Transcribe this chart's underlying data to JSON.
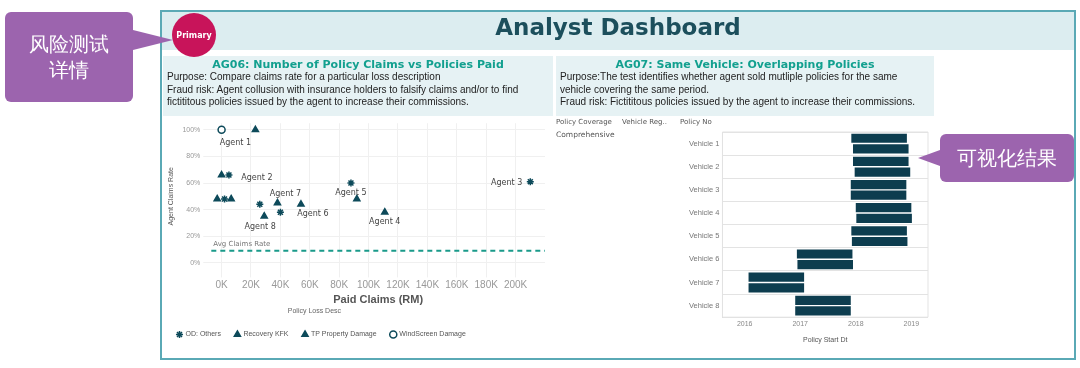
{
  "chart_data": [
    {
      "type": "scatter",
      "title": "AG06: Number of Policy Claims vs Policies Paid",
      "subtitle": "Purpose: Compare claims rate for a particular loss description\nFraud risk: Agent collusion with insurance holders to falsify claims and/or to find fictititous policies issued by the agent to increase their commissions.",
      "xlabel": "Paid Claims (RM)",
      "ylabel": "Agent Claims Rate",
      "legend_title": "Policy Loss Desc",
      "legend": "bottom",
      "grid": true,
      "xlim": [
        -7000,
        220000
      ],
      "xticks": [
        {
          "value": 0,
          "label": "0K"
        },
        {
          "value": 20000,
          "label": "20K"
        },
        {
          "value": 40000,
          "label": "40K"
        },
        {
          "value": 60000,
          "label": "60K"
        },
        {
          "value": 80000,
          "label": "80K"
        },
        {
          "value": 100000,
          "label": "100K"
        },
        {
          "value": 120000,
          "label": "120K"
        },
        {
          "value": 140000,
          "label": "140K"
        },
        {
          "value": 160000,
          "label": "160K"
        },
        {
          "value": 180000,
          "label": "180K"
        },
        {
          "value": 200000,
          "label": "200K"
        }
      ],
      "ylim": [
        -5,
        105
      ],
      "yticks": [
        {
          "value": 0,
          "label": "0%"
        },
        {
          "value": 20,
          "label": "20%"
        },
        {
          "value": 40,
          "label": "40%"
        },
        {
          "value": 60,
          "label": "60%"
        },
        {
          "value": 80,
          "label": "80%"
        },
        {
          "value": 100,
          "label": "100%"
        }
      ],
      "series": [
        {
          "name": "OD: Others",
          "color": "#0d4a5a",
          "marker": "cross",
          "x": [
            5000,
            2000,
            26000,
            40000,
            88000,
            210000
          ],
          "values": [
            66,
            48,
            44,
            38,
            60,
            61
          ]
        },
        {
          "name": "Recovery KFK",
          "color": "#0d4a5a",
          "marker": "triangle",
          "x": [
            -3000,
            29000
          ],
          "values": [
            48,
            35
          ]
        },
        {
          "name": "TP Property Damage",
          "color": "#0d4a5a",
          "marker": "triangle",
          "x": [
            23000,
            0,
            6500,
            38000,
            54000,
            92000,
            111000
          ],
          "values": [
            100,
            66,
            48,
            45,
            44,
            48,
            38
          ]
        },
        {
          "name": "WindScreen Damage",
          "color": "#0d4a5a",
          "marker": "circle",
          "x": [
            0
          ],
          "values": [
            100
          ]
        }
      ],
      "ref_lines": [
        {
          "axis": "y",
          "value": 9,
          "label": "Avg Claims Rate",
          "color": "#1a9a8a",
          "line_style": "dashed"
        }
      ],
      "annotations": [
        {
          "text": "Agent 1",
          "x": 23000,
          "y": 100
        },
        {
          "text": "Agent 2",
          "x": 5000,
          "y": 66
        },
        {
          "text": "Agent 7",
          "x": 38000,
          "y": 45
        },
        {
          "text": "Agent 6",
          "x": 54000,
          "y": 44
        },
        {
          "text": "Agent 5",
          "x": 88000,
          "y": 60
        },
        {
          "text": "Agent 4",
          "x": 111000,
          "y": 38
        },
        {
          "text": "Agent 8",
          "x": 29000,
          "y": 35
        },
        {
          "text": "Agent 3",
          "x": 210000,
          "y": 61
        }
      ]
    },
    {
      "type": "bar",
      "orientation": "horizontal",
      "title": "AG07: Same Vehicle: Overlapping Policies",
      "subtitle": "Purpose:The test identifies whether agent sold mutliple policies for the same vehicle covering the same period.\nFraud risk: Fictititous policies issued by the agent to increase their commissions.",
      "xlabel": "Policy Start Dt",
      "grid": "y",
      "categories": [
        "Vehicle 1",
        "Vehicle 2",
        "Vehicle 3",
        "Vehicle 4",
        "Vehicle 5",
        "Vehicle 6",
        "Vehicle 7",
        "Vehicle 8"
      ],
      "series": [
        {
          "color": "#0d3d4f",
          "base": [
            2017.92,
            2017.95,
            2017.91,
            2018.0,
            2017.92,
            2016.94,
            2016.07,
            2016.91
          ],
          "values": [
            1,
            1,
            1,
            1,
            1,
            1,
            1,
            1
          ]
        },
        {
          "color": "#0d3d4f",
          "base": [
            2017.95,
            2017.98,
            2017.91,
            2018.01,
            2017.93,
            2016.95,
            2016.07,
            2016.91
          ],
          "values": [
            1,
            1,
            1,
            1,
            1,
            1,
            1,
            1
          ]
        }
      ],
      "xlim": [
        2015.6,
        2019.3
      ],
      "xticks": [
        2016,
        2017,
        2018,
        2019
      ],
      "annotations": [
        "Policy Coverage",
        "Vehicle Reg..",
        "Policy No",
        "Comprehensive"
      ]
    },
    {
      "type": "other",
      "title": "Analyst Dashboard",
      "annotations": [
        "Primary",
        "风险测试详情",
        "可视化结果"
      ]
    }
  ]
}
